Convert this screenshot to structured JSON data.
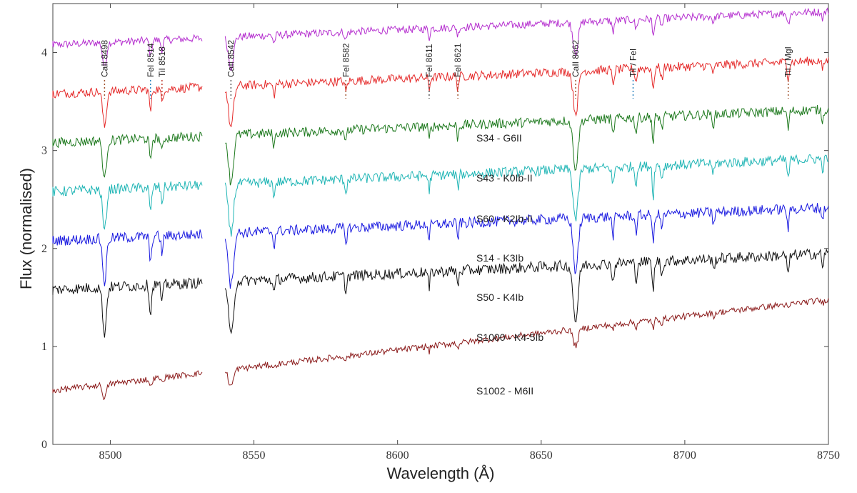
{
  "chart_data": {
    "type": "line",
    "xlabel": "Wavelength (Å)",
    "ylabel": "Flux (normalised)",
    "xlim": [
      8480,
      8750
    ],
    "ylim": [
      0,
      4.5
    ],
    "x_ticks": [
      "8500",
      "8550",
      "8600",
      "8650",
      "8700",
      "8750"
    ],
    "y_ticks": [
      "0",
      "1",
      "2",
      "3",
      "4"
    ],
    "grid": false,
    "gap": [
      8532,
      8540
    ],
    "line_ids": [
      {
        "label": "CaII 8498",
        "wavelength": 8498,
        "color": "#a0522d"
      },
      {
        "label": "FeI 8514",
        "wavelength": 8514,
        "color": "#2e86c1"
      },
      {
        "label": "TiI 8518",
        "wavelength": 8518,
        "color": "#c0392b"
      },
      {
        "label": "CaII 8542",
        "wavelength": 8542,
        "color": "#555555"
      },
      {
        "label": "FeI 8582",
        "wavelength": 8582,
        "color": "#a0522d"
      },
      {
        "label": "FeI 8611",
        "wavelength": 8611,
        "color": "#555555"
      },
      {
        "label": "FeI 8621",
        "wavelength": 8621,
        "color": "#a0522d"
      },
      {
        "label": "CaII 8662",
        "wavelength": 8662,
        "color": "#a0522d"
      },
      {
        "label": "TiI / FeI",
        "wavelength": 8682,
        "color": "#2e86c1"
      },
      {
        "label": "TiI / MgI",
        "wavelength": 8736,
        "color": "#a0522d"
      }
    ],
    "series": [
      {
        "name": "S34 - G6II",
        "color": "#b52fcf",
        "continuum_start": 4.08,
        "continuum_end": 4.42,
        "line_scale": 0.55
      },
      {
        "name": "S43 - K0Ib-II",
        "color": "#e52a2a",
        "continuum_start": 3.58,
        "continuum_end": 3.92,
        "line_scale": 0.75
      },
      {
        "name": "S60 - K2Ib-II",
        "color": "#1f7a1f",
        "continuum_start": 3.08,
        "continuum_end": 3.42,
        "line_scale": 0.85
      },
      {
        "name": "S14 - K3Ib",
        "color": "#1fb5b5",
        "continuum_start": 2.58,
        "continuum_end": 2.92,
        "line_scale": 0.9
      },
      {
        "name": "S50 - K4Ib",
        "color": "#1a1ae0",
        "continuum_start": 2.08,
        "continuum_end": 2.42,
        "line_scale": 0.95
      },
      {
        "name": "S1000 - K4-5Ib",
        "color": "#111111",
        "continuum_start": 1.58,
        "continuum_end": 1.95,
        "line_scale": 1.0
      },
      {
        "name": "S1002 - M6II",
        "color": "#8b1a1a",
        "continuum_start": 0.55,
        "continuum_end": 1.48,
        "line_scale": 0.3
      }
    ],
    "absorption_lines": [
      {
        "center": 8498,
        "depth": 0.8,
        "width": 0.9
      },
      {
        "center": 8514,
        "depth": 0.5,
        "width": 0.5
      },
      {
        "center": 8518,
        "depth": 0.3,
        "width": 0.5
      },
      {
        "center": 8542,
        "depth": 0.95,
        "width": 1.2
      },
      {
        "center": 8557,
        "depth": 0.25,
        "width": 0.5
      },
      {
        "center": 8582,
        "depth": 0.25,
        "width": 0.5
      },
      {
        "center": 8611,
        "depth": 0.3,
        "width": 0.4
      },
      {
        "center": 8621,
        "depth": 0.28,
        "width": 0.4
      },
      {
        "center": 8662,
        "depth": 0.95,
        "width": 1.2
      },
      {
        "center": 8675,
        "depth": 0.35,
        "width": 0.5
      },
      {
        "center": 8683,
        "depth": 0.3,
        "width": 0.5
      },
      {
        "center": 8689,
        "depth": 0.6,
        "width": 0.4
      },
      {
        "center": 8692,
        "depth": 0.25,
        "width": 0.5
      },
      {
        "center": 8710,
        "depth": 0.2,
        "width": 0.5
      },
      {
        "center": 8736,
        "depth": 0.35,
        "width": 0.5
      },
      {
        "center": 8748,
        "depth": 0.2,
        "width": 0.5
      }
    ]
  }
}
